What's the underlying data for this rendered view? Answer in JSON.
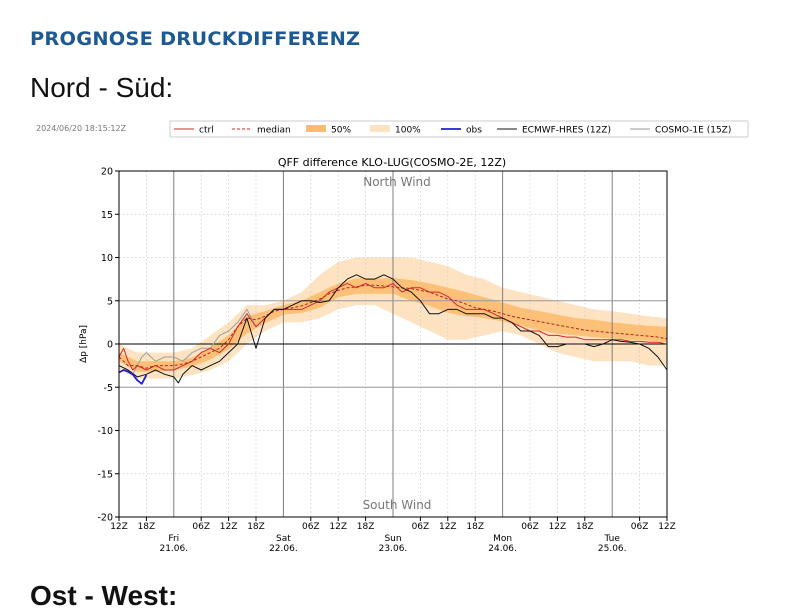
{
  "page": {
    "heading": "PROGNOSE DRUCKDIFFERENZ",
    "section_title": "Nord - Süd:",
    "next_section_title": "Ost - West:"
  },
  "chart_data": {
    "type": "line",
    "timestamp": "2024/06/20 18:15:12Z",
    "title": "QFF difference KLO-LUG(COSMO-2E, 12Z)",
    "ylabel": "Δp [hPa]",
    "ylim": [
      -20,
      20
    ],
    "yticks": [
      -20,
      -15,
      -10,
      -5,
      0,
      5,
      10,
      15,
      20
    ],
    "x_unit": "hours since 2024-06-20 12Z",
    "xlim": [
      0,
      120
    ],
    "xticks": [
      {
        "x": 0,
        "label": "12Z"
      },
      {
        "x": 6,
        "label": "18Z"
      },
      {
        "x": 18,
        "label": "06Z"
      },
      {
        "x": 24,
        "label": "12Z"
      },
      {
        "x": 30,
        "label": "18Z"
      },
      {
        "x": 42,
        "label": "06Z"
      },
      {
        "x": 48,
        "label": "12Z"
      },
      {
        "x": 54,
        "label": "18Z"
      },
      {
        "x": 66,
        "label": "06Z"
      },
      {
        "x": 72,
        "label": "12Z"
      },
      {
        "x": 78,
        "label": "18Z"
      },
      {
        "x": 90,
        "label": "06Z"
      },
      {
        "x": 96,
        "label": "12Z"
      },
      {
        "x": 102,
        "label": "18Z"
      },
      {
        "x": 114,
        "label": "06Z"
      },
      {
        "x": 120,
        "label": "12Z"
      }
    ],
    "day_labels": [
      {
        "x": 12,
        "weekday": "Fri",
        "date": "21.06."
      },
      {
        "x": 36,
        "weekday": "Sat",
        "date": "22.06."
      },
      {
        "x": 60,
        "weekday": "Sun",
        "date": "23.06."
      },
      {
        "x": 84,
        "weekday": "Mon",
        "date": "24.06."
      },
      {
        "x": 108,
        "weekday": "Tue",
        "date": "25.06."
      }
    ],
    "annotations": {
      "top": "North Wind",
      "bottom": "South Wind"
    },
    "reference_lines": [
      0,
      5,
      -5
    ],
    "legend": {
      "placement": "top",
      "entries": [
        {
          "label": "ctrl",
          "color": "#d62728",
          "style": "solid"
        },
        {
          "label": "median",
          "color": "#d62728",
          "style": "dashed"
        },
        {
          "label": "50%",
          "color": "#fdbb6e",
          "style": "band"
        },
        {
          "label": "100%",
          "color": "#fde3c2",
          "style": "band"
        },
        {
          "label": "obs",
          "color": "#1f1fd0",
          "style": "solid"
        },
        {
          "label": "ECMWF-HRES (12Z)",
          "color": "#111111",
          "style": "solid"
        },
        {
          "label": "COSMO-1E (15Z)",
          "color": "#999999",
          "style": "solid"
        }
      ]
    },
    "series": {
      "ctrl": {
        "x": [
          0,
          1,
          2,
          3,
          4,
          6,
          8,
          10,
          12,
          14,
          16,
          18,
          20,
          22,
          24,
          26,
          28,
          30,
          32,
          34,
          36,
          38,
          40,
          42,
          44,
          46,
          48,
          50,
          52,
          54,
          56,
          58,
          60,
          62,
          64,
          66,
          68,
          70,
          72,
          74,
          76,
          78,
          80,
          82,
          84,
          86,
          88,
          90,
          92,
          94,
          96,
          98,
          100,
          102,
          104,
          106,
          108,
          110,
          112,
          114,
          116,
          118,
          120
        ],
        "y": [
          -1.5,
          -0.5,
          -2,
          -3,
          -2.5,
          -3,
          -2.5,
          -3,
          -3,
          -2.5,
          -2,
          -1,
          -0.5,
          -1,
          0,
          2,
          3.5,
          2,
          3,
          4,
          4,
          4,
          4,
          4.5,
          5,
          6,
          6.5,
          7,
          6.5,
          7,
          6.5,
          6.5,
          7,
          6,
          6.5,
          6.5,
          6,
          6,
          5.5,
          4.5,
          4,
          4,
          4,
          3.5,
          3,
          2.5,
          2,
          1.5,
          1.5,
          1,
          1,
          0.8,
          0.8,
          0.5,
          0.5,
          0.5,
          0.5,
          0.5,
          0.3,
          0.3,
          0.2,
          0.2,
          0
        ]
      },
      "median": {
        "x": [
          0,
          2,
          4,
          6,
          8,
          10,
          12,
          14,
          16,
          18,
          20,
          22,
          24,
          26,
          28,
          30,
          32,
          34,
          36,
          38,
          40,
          42,
          44,
          46,
          48,
          50,
          52,
          54,
          56,
          58,
          60,
          62,
          64,
          66,
          68,
          70,
          72,
          74,
          76,
          78,
          80,
          82,
          84,
          86,
          88,
          90,
          92,
          94,
          96,
          98,
          100,
          102,
          104,
          106,
          108,
          110,
          112,
          114,
          116,
          118,
          120
        ],
        "y": [
          -1.5,
          -2.5,
          -2.5,
          -2.8,
          -2.5,
          -2.5,
          -2.5,
          -2.3,
          -2,
          -1.5,
          -1,
          -0.5,
          0.5,
          2,
          3,
          2.8,
          3.2,
          3.8,
          4,
          4.2,
          4.4,
          4.8,
          5.2,
          5.8,
          6.2,
          6.5,
          6.6,
          6.8,
          6.8,
          6.7,
          6.6,
          6.5,
          6.4,
          6.2,
          6,
          5.6,
          5.2,
          5,
          4.6,
          4.2,
          4,
          3.8,
          3.5,
          3.2,
          3,
          2.8,
          2.6,
          2.4,
          2.2,
          2,
          1.8,
          1.6,
          1.5,
          1.4,
          1.3,
          1.2,
          1.1,
          1,
          0.9,
          0.8,
          0.6
        ]
      },
      "band_50": {
        "x": [
          0,
          4,
          8,
          12,
          16,
          20,
          24,
          28,
          32,
          36,
          40,
          44,
          48,
          52,
          56,
          60,
          64,
          68,
          72,
          76,
          80,
          84,
          88,
          92,
          96,
          100,
          104,
          108,
          112,
          116,
          120
        ],
        "lower": [
          -2,
          -3.2,
          -3.2,
          -3,
          -2.6,
          -1.8,
          -0.6,
          1.2,
          2.4,
          3.4,
          3.6,
          4.2,
          5.4,
          5.8,
          5.8,
          5.8,
          5,
          4.4,
          3.6,
          3.2,
          3,
          2.6,
          2.1,
          1.6,
          1.2,
          1,
          0.8,
          0.6,
          0.5,
          0.4,
          0.2
        ],
        "upper": [
          -1,
          -2,
          -2,
          -2,
          -1.6,
          -0.4,
          1,
          3.2,
          3.8,
          4.5,
          5,
          6,
          7,
          7.6,
          7.6,
          7.6,
          7.4,
          7,
          6.5,
          6,
          5.4,
          4.8,
          4.2,
          3.8,
          3.4,
          3,
          2.8,
          2.5,
          2.3,
          2.1,
          2
        ]
      },
      "band_100": {
        "x": [
          0,
          4,
          8,
          12,
          16,
          20,
          24,
          28,
          32,
          36,
          40,
          44,
          48,
          52,
          56,
          60,
          64,
          68,
          72,
          76,
          80,
          84,
          88,
          92,
          96,
          100,
          104,
          108,
          112,
          116,
          120
        ],
        "lower": [
          -3,
          -4,
          -4,
          -4,
          -3.6,
          -3,
          -2,
          0,
          1.5,
          2.5,
          2.5,
          3,
          4,
          4.5,
          4.5,
          3.5,
          2.5,
          1.5,
          0.5,
          0.5,
          1,
          1.5,
          1,
          0,
          -1,
          -1.5,
          -2,
          -2,
          -2,
          -2.5,
          -2.5
        ],
        "upper": [
          0,
          -1,
          -1,
          -1,
          -0.5,
          1,
          2.5,
          4.5,
          4.5,
          5,
          6,
          8,
          9.5,
          10,
          10,
          10,
          10,
          9.5,
          9,
          8,
          7.5,
          6.5,
          6,
          5.5,
          5,
          4.5,
          4,
          3.8,
          3.5,
          3.2,
          3
        ]
      },
      "obs": {
        "x": [
          0,
          1,
          2,
          3,
          4,
          5,
          6
        ],
        "y": [
          -3.3,
          -3,
          -3.2,
          -3.5,
          -4.2,
          -4.6,
          -3.6
        ]
      },
      "ecmwf": {
        "x": [
          0,
          2,
          4,
          6,
          8,
          10,
          12,
          13,
          14,
          16,
          18,
          20,
          22,
          24,
          26,
          28,
          30,
          32,
          34,
          36,
          38,
          40,
          42,
          44,
          46,
          48,
          50,
          52,
          54,
          56,
          58,
          60,
          62,
          64,
          66,
          68,
          70,
          72,
          74,
          76,
          78,
          80,
          82,
          84,
          86,
          88,
          90,
          92,
          94,
          96,
          98,
          100,
          102,
          104,
          106,
          108,
          110,
          112,
          114,
          116,
          118,
          120
        ],
        "y": [
          -2.5,
          -3,
          -3.8,
          -3.5,
          -3,
          -3.5,
          -3.8,
          -4.5,
          -3.5,
          -2.5,
          -3,
          -2.5,
          -2,
          -1,
          0,
          3,
          -0.5,
          3,
          4,
          4,
          4.5,
          5,
          5,
          4.8,
          5,
          6.5,
          7.5,
          8,
          7.5,
          7.5,
          8,
          7.5,
          6.5,
          6,
          5,
          3.5,
          3.5,
          4,
          4,
          3.5,
          3.5,
          3.5,
          3,
          3,
          2.5,
          1.5,
          1.5,
          1,
          -0.3,
          -0.3,
          0,
          0,
          0,
          -0.3,
          0,
          0.5,
          0.3,
          0.2,
          0,
          -0.5,
          -1.5,
          -3
        ]
      },
      "cosmo1e": {
        "x": [
          3,
          4,
          5,
          6,
          8,
          10,
          12,
          14,
          16,
          18,
          20,
          22,
          24,
          26,
          28,
          30,
          32,
          34,
          36
        ],
        "y": [
          -3.5,
          -2.5,
          -1.5,
          -1,
          -2,
          -1.5,
          -1.5,
          -2,
          -1,
          -0.5,
          -0.5,
          1,
          1.5,
          2.5,
          4,
          2,
          3,
          4,
          4
        ]
      }
    }
  }
}
